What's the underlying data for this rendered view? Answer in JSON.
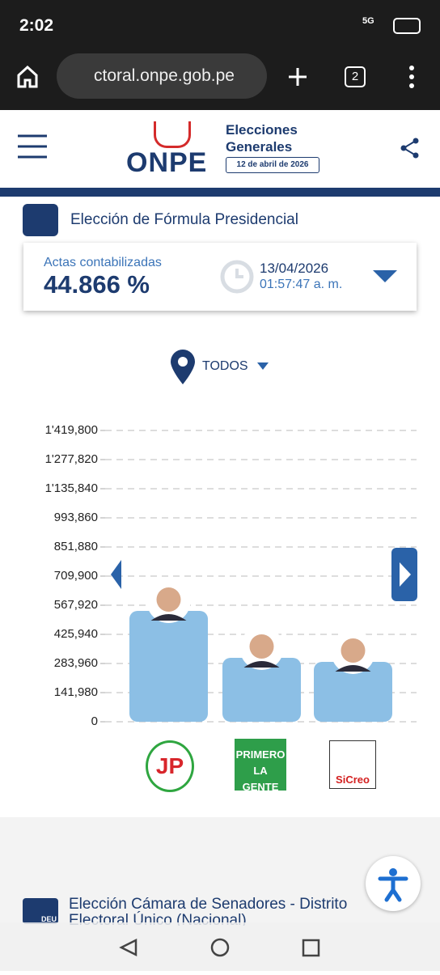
{
  "status": {
    "time": "2:02",
    "network": "5G"
  },
  "browser": {
    "url": "ctoral.onpe.gob.pe",
    "tabs": "2"
  },
  "header": {
    "logo": "ONPE",
    "title_line1": "Elecciones",
    "title_line2": "Generales",
    "date": "12 de abril de 2026"
  },
  "section": {
    "title": "Elección de Fórmula Presidencial",
    "actas_label": "Actas contabilizadas",
    "actas_value": "44.866 %",
    "date": "13/04/2026",
    "time": "01:57:47 a. m.",
    "filter": "TODOS"
  },
  "chart_data": {
    "type": "bar",
    "categories": [
      "JP",
      "PRIMERO LA GENTE",
      "SiCreo"
    ],
    "values": [
      540300,
      311600,
      291900
    ],
    "color": "#8cbfe5",
    "ylim": [
      0,
      1419800
    ],
    "yticks": [
      0,
      {
        "value": 141980,
        "label": "141,980"
      },
      {
        "value": 283960,
        "label": "283,960"
      },
      {
        "value": 425940,
        "label": "425,940"
      },
      {
        "value": 567920,
        "label": "567,920"
      },
      {
        "value": 709900,
        "label": "709,900"
      },
      {
        "value": 851880,
        "label": "851,880"
      },
      {
        "value": 993860,
        "label": "993,860"
      },
      {
        "value": 1135840,
        "label": "1'135,840"
      },
      {
        "value": 1277820,
        "label": "1'277,820"
      },
      {
        "value": 1419800,
        "label": "1'419,800"
      }
    ],
    "grid": true
  },
  "next_section": {
    "badge": "DEU",
    "title": "Elección Cámara de Senadores - Distrito Electoral Único (Nacional)"
  }
}
